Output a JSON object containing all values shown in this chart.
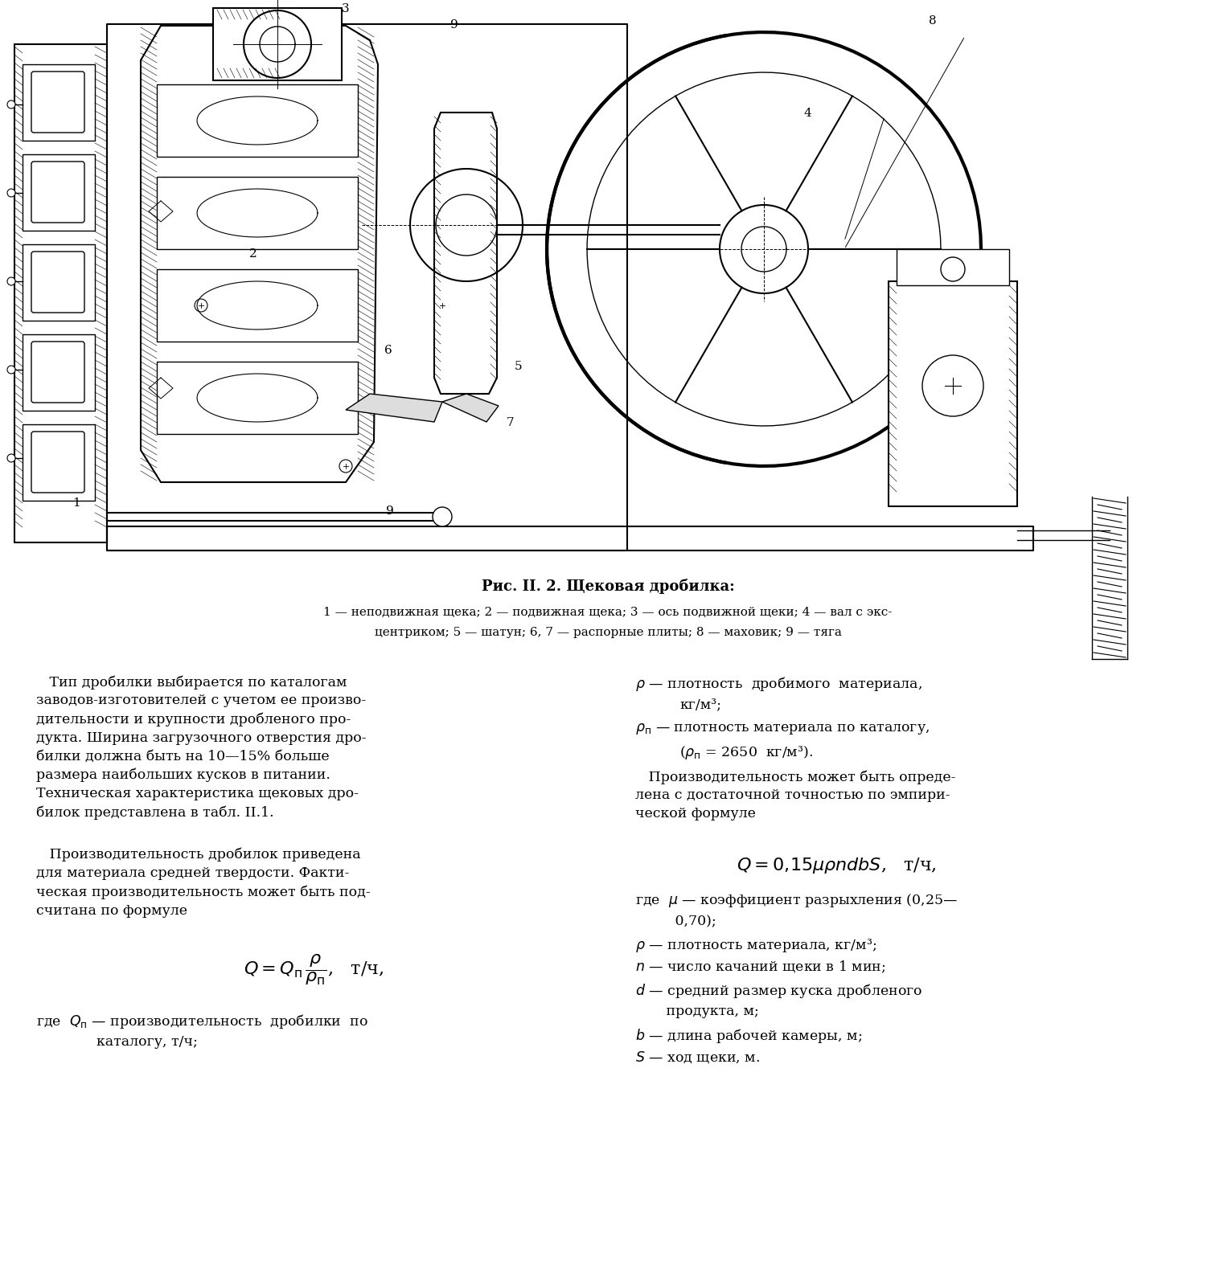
{
  "title": "Рис. II. 2. Щековая дробилка:",
  "cap1": "1 — неподвижная щека; 2 — подвижная щека; 3 — ось подвижной щеки; 4 — вал с экс-",
  "cap2": "центриком; 5 — шатун; 6, 7 — распорные плиты; 8 — маховик; 9 — тяга",
  "background_color": "#ffffff",
  "text_color": "#000000",
  "figure_width": 15.11,
  "figure_height": 15.89
}
